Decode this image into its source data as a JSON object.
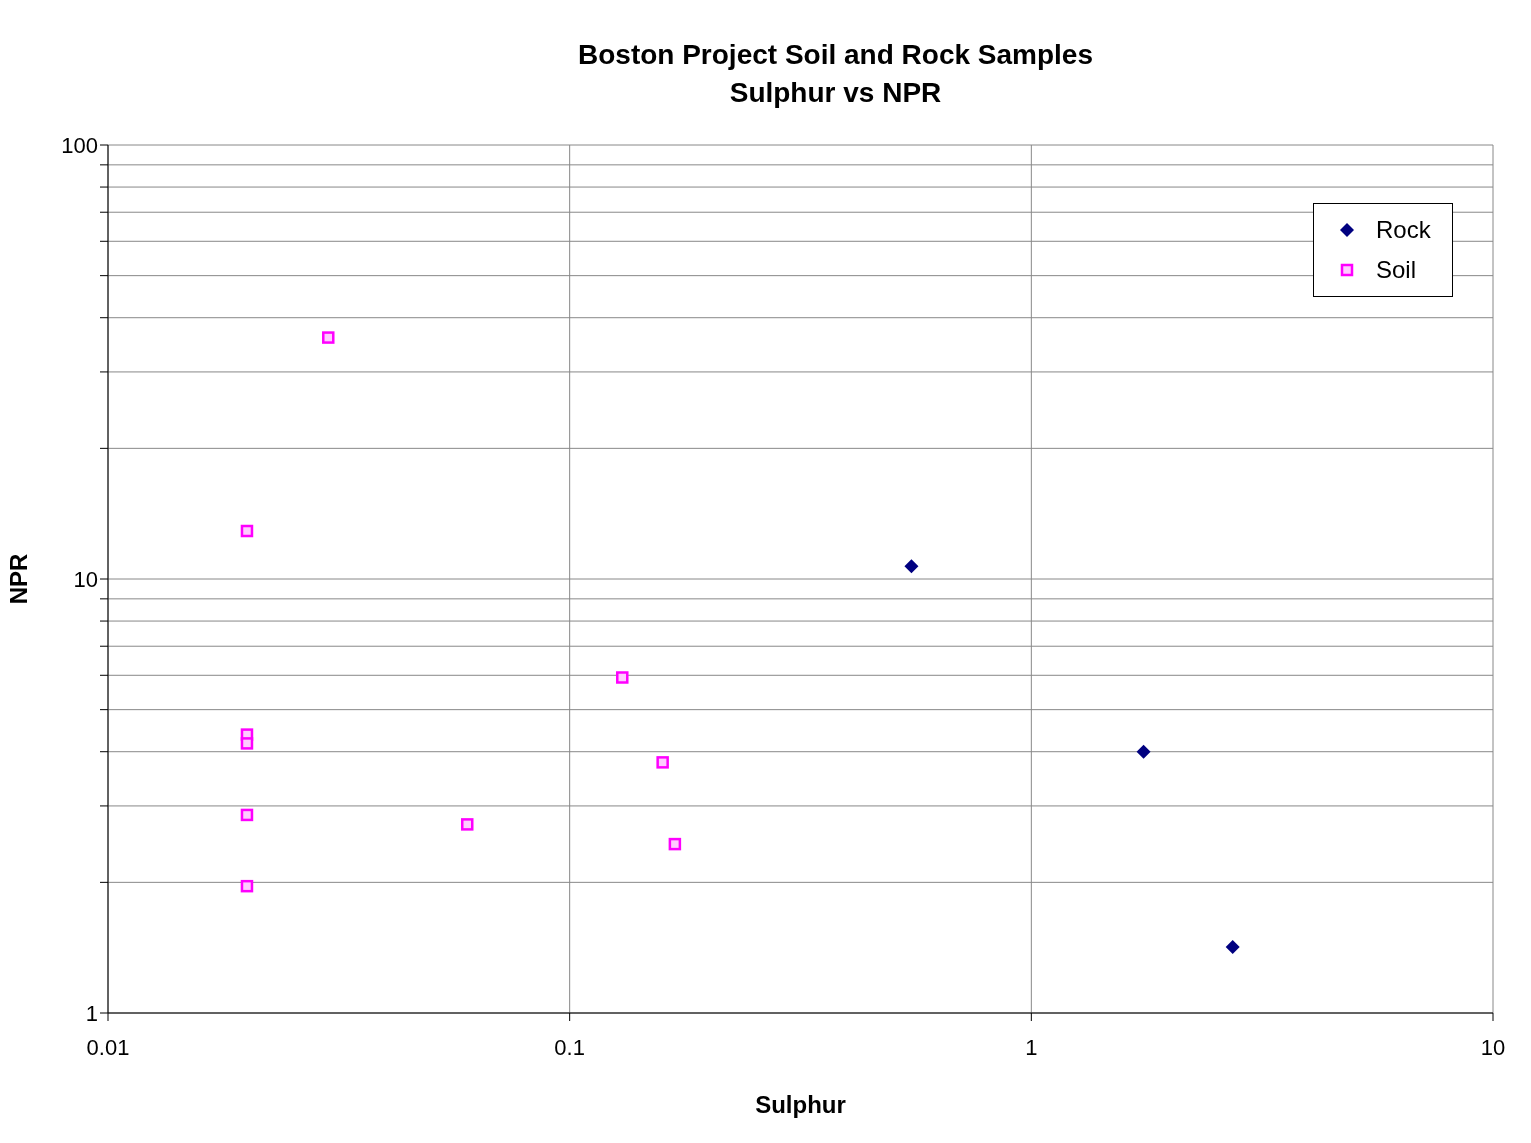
{
  "chart_data": {
    "type": "scatter",
    "title": "Boston Project Soil and Rock Samples",
    "subtitle": "Sulphur vs NPR",
    "xlabel": "Sulphur",
    "ylabel": "NPR",
    "log": "xy",
    "grid": true,
    "legend": "top right",
    "xlim": [
      0.01,
      10
    ],
    "xticks": [
      0.01,
      0.1,
      1,
      10
    ],
    "ylim": [
      1,
      100
    ],
    "yticks": [
      1,
      {
        "value": 2,
        "label": null
      },
      {
        "value": 3,
        "label": null
      },
      {
        "value": 4,
        "label": null
      },
      {
        "value": 5,
        "label": null
      },
      {
        "value": 6,
        "label": null
      },
      {
        "value": 7,
        "label": null
      },
      {
        "value": 8,
        "label": null
      },
      {
        "value": 9,
        "label": null
      },
      10,
      {
        "value": 20,
        "label": null
      },
      {
        "value": 30,
        "label": null
      },
      {
        "value": 40,
        "label": null
      },
      {
        "value": 50,
        "label": null
      },
      {
        "value": 60,
        "label": null
      },
      {
        "value": 70,
        "label": null
      },
      {
        "value": 80,
        "label": null
      },
      {
        "value": 90,
        "label": null
      },
      100
    ],
    "series": [
      {
        "name": "Rock",
        "color": "#000080",
        "marker": "diamond",
        "x": [
          0.55,
          1.75,
          2.73
        ],
        "values": [
          10.7,
          4.0,
          1.42
        ]
      },
      {
        "name": "Soil",
        "color": "#ff00ff",
        "marker": "square",
        "x": [
          0.02,
          0.03,
          0.02,
          0.02,
          0.02,
          0.02,
          0.06,
          0.13,
          0.159,
          0.169
        ],
        "values": [
          12.9,
          36,
          4.38,
          4.18,
          2.86,
          1.96,
          2.72,
          5.93,
          3.78,
          2.45
        ]
      }
    ]
  }
}
